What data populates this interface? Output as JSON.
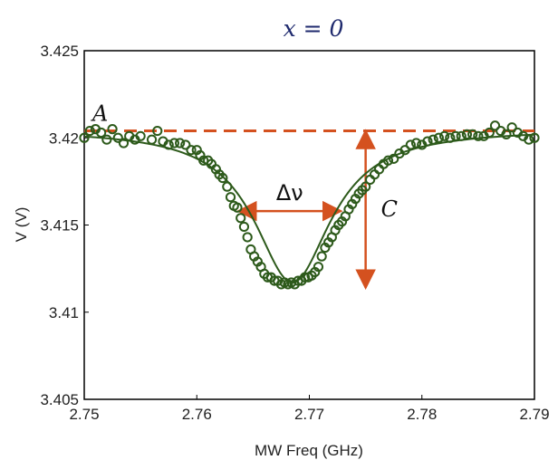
{
  "chart_data": {
    "type": "scatter",
    "title": "x = 0",
    "xlabel": "MW Freq (GHz)",
    "ylabel": "V (V)",
    "xlim": [
      2.75,
      2.79
    ],
    "ylim": [
      3.405,
      3.425
    ],
    "x_ticks": [
      "2.75",
      "2.76",
      "2.77",
      "2.78",
      "2.79"
    ],
    "y_ticks": [
      "3.405",
      "3.41",
      "3.415",
      "3.42",
      "3.425"
    ],
    "grid": false,
    "legend": "none",
    "colors": {
      "points": "#2d5a1b",
      "fit": "#2d5a1b",
      "annotation": "#d4511f",
      "title": "#1f2a6e"
    },
    "series": [
      {
        "marker": "open-circle",
        "points": [
          [
            2.75,
            3.42
          ],
          [
            2.7505,
            3.4204
          ],
          [
            2.751,
            3.4205
          ],
          [
            2.7515,
            3.4203
          ],
          [
            2.752,
            3.4199
          ],
          [
            2.7525,
            3.4205
          ],
          [
            2.753,
            3.42
          ],
          [
            2.7535,
            3.4197
          ],
          [
            2.754,
            3.4201
          ],
          [
            2.7545,
            3.4199
          ],
          [
            2.755,
            3.4201
          ],
          [
            2.756,
            3.4199
          ],
          [
            2.7565,
            3.4204
          ],
          [
            2.757,
            3.4198
          ],
          [
            2.7575,
            3.4196
          ],
          [
            2.758,
            3.4197
          ],
          [
            2.7585,
            3.4197
          ],
          [
            2.759,
            3.4196
          ],
          [
            2.7595,
            3.4193
          ],
          [
            2.76,
            3.4193
          ],
          [
            2.7603,
            3.419
          ],
          [
            2.7606,
            3.4187
          ],
          [
            2.761,
            3.4187
          ],
          [
            2.7613,
            3.4185
          ],
          [
            2.7617,
            3.4182
          ],
          [
            2.762,
            3.4179
          ],
          [
            2.7623,
            3.4177
          ],
          [
            2.7627,
            3.4172
          ],
          [
            2.763,
            3.4166
          ],
          [
            2.7633,
            3.4161
          ],
          [
            2.7636,
            3.416
          ],
          [
            2.7639,
            3.4154
          ],
          [
            2.7642,
            3.4149
          ],
          [
            2.7645,
            3.4143
          ],
          [
            2.7648,
            3.4136
          ],
          [
            2.7651,
            3.4132
          ],
          [
            2.7654,
            3.4129
          ],
          [
            2.7657,
            3.4126
          ],
          [
            2.766,
            3.4122
          ],
          [
            2.7663,
            3.412
          ],
          [
            2.7666,
            3.412
          ],
          [
            2.7669,
            3.4118
          ],
          [
            2.7672,
            3.4118
          ],
          [
            2.7675,
            3.4116
          ],
          [
            2.7678,
            3.4117
          ],
          [
            2.7681,
            3.4116
          ],
          [
            2.7684,
            3.4117
          ],
          [
            2.7687,
            3.4116
          ],
          [
            2.769,
            3.4118
          ],
          [
            2.7693,
            3.4118
          ],
          [
            2.7696,
            3.412
          ],
          [
            2.7699,
            3.412
          ],
          [
            2.7702,
            3.4121
          ],
          [
            2.7705,
            3.4123
          ],
          [
            2.7708,
            3.4126
          ],
          [
            2.7711,
            3.4132
          ],
          [
            2.7714,
            3.4137
          ],
          [
            2.7717,
            3.414
          ],
          [
            2.772,
            3.4143
          ],
          [
            2.7723,
            3.4147
          ],
          [
            2.7726,
            3.415
          ],
          [
            2.7729,
            3.4152
          ],
          [
            2.7732,
            3.4155
          ],
          [
            2.7735,
            3.4159
          ],
          [
            2.7738,
            3.4162
          ],
          [
            2.7741,
            3.4165
          ],
          [
            2.7744,
            3.4168
          ],
          [
            2.7747,
            3.417
          ],
          [
            2.775,
            3.4172
          ],
          [
            2.7754,
            3.4176
          ],
          [
            2.7758,
            3.4179
          ],
          [
            2.7762,
            3.4182
          ],
          [
            2.7766,
            3.4185
          ],
          [
            2.777,
            3.4187
          ],
          [
            2.7775,
            3.4188
          ],
          [
            2.778,
            3.4191
          ],
          [
            2.7785,
            3.4193
          ],
          [
            2.779,
            3.4196
          ],
          [
            2.7795,
            3.4197
          ],
          [
            2.78,
            3.4196
          ],
          [
            2.7805,
            3.4198
          ],
          [
            2.781,
            3.4199
          ],
          [
            2.7815,
            3.42
          ],
          [
            2.782,
            3.4201
          ],
          [
            2.7825,
            3.42
          ],
          [
            2.783,
            3.4201
          ],
          [
            2.7835,
            3.4201
          ],
          [
            2.784,
            3.4202
          ],
          [
            2.7845,
            3.4202
          ],
          [
            2.785,
            3.4201
          ],
          [
            2.7855,
            3.4201
          ],
          [
            2.786,
            3.4203
          ],
          [
            2.7865,
            3.4207
          ],
          [
            2.787,
            3.4204
          ],
          [
            2.7875,
            3.4202
          ],
          [
            2.788,
            3.4206
          ],
          [
            2.7885,
            3.4203
          ],
          [
            2.789,
            3.4201
          ],
          [
            2.7895,
            3.4199
          ],
          [
            2.79,
            3.42
          ]
        ]
      }
    ],
    "fit": {
      "type": "lorentzian-dip",
      "baseline": 3.4205,
      "center": 2.7685,
      "depth": 0.0088,
      "fwhm": 0.0083
    },
    "annotations": {
      "baseline_label": "A",
      "width_label": "Δν",
      "contrast_label": "C",
      "baseline_level": 3.4204,
      "width_arrow": {
        "x_from": 2.7637,
        "x_to": 2.7728,
        "y": 3.4158
      },
      "contrast_arrow": {
        "x": 2.775,
        "y_from": 3.4204,
        "y_to": 3.4114
      }
    }
  }
}
